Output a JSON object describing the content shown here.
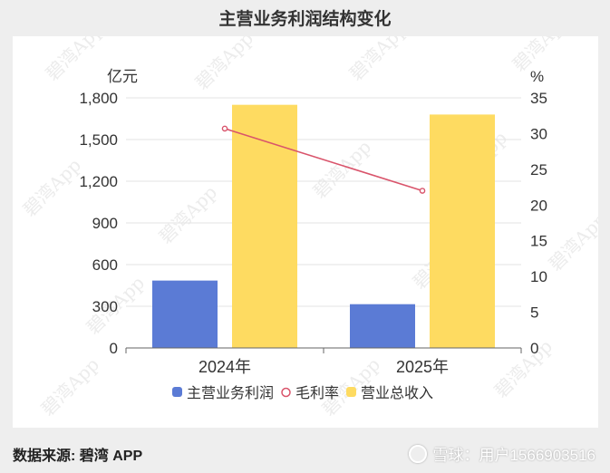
{
  "page": {
    "title": "主营业务利润结构变化",
    "source_note": "数据来源: 碧湾 APP",
    "watermark": "雪球：用户1566903516",
    "background_watermark": "碧湾App"
  },
  "chart_data": {
    "type": "bar",
    "title": "主营业务利润结构变化",
    "categories": [
      "2024年",
      "2025年"
    ],
    "series": [
      {
        "name": "主营业务利润",
        "type": "bar",
        "axis": "left",
        "color": "#5b7bd5",
        "values": [
          485,
          315
        ]
      },
      {
        "name": "毛利率",
        "type": "line",
        "axis": "right",
        "color": "#d9546b",
        "values": [
          30.7,
          22.0
        ]
      },
      {
        "name": "营业总收入",
        "type": "bar",
        "axis": "left",
        "color": "#fedb61",
        "values": [
          1750,
          1680
        ]
      }
    ],
    "y_left": {
      "unit": "亿元",
      "min": 0,
      "max": 1800,
      "ticks": [
        0,
        300,
        600,
        900,
        1200,
        1500,
        1800
      ],
      "tick_labels": [
        "0",
        "300",
        "600",
        "900",
        "1,200",
        "1,500",
        "1,800"
      ]
    },
    "y_right": {
      "unit": "%",
      "min": 0,
      "max": 35,
      "ticks": [
        0,
        5,
        10,
        15,
        20,
        25,
        30,
        35
      ],
      "tick_labels": [
        "0",
        "5",
        "10",
        "15",
        "20",
        "25",
        "30",
        "35"
      ]
    },
    "grid": true,
    "legend_position": "bottom"
  }
}
